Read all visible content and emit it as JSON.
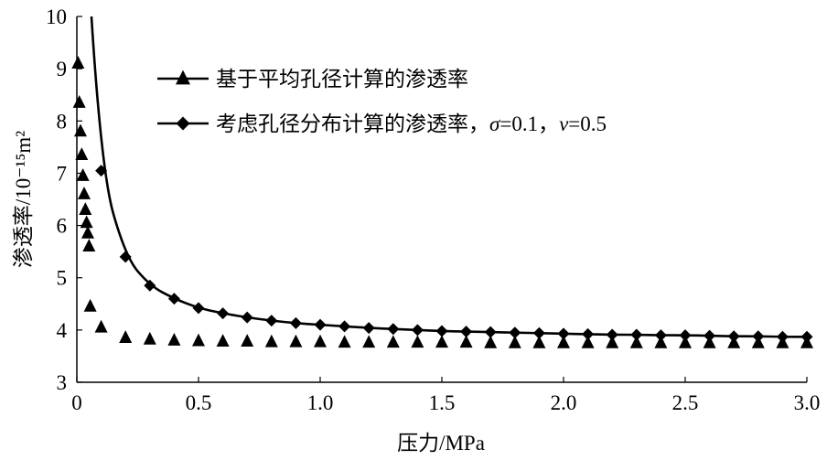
{
  "chart_data": {
    "type": "line",
    "xlabel": "压力/MPa",
    "ylabel": "渗透率/10⁻¹⁵m²",
    "xlim": [
      0,
      3.0
    ],
    "ylim": [
      3,
      10
    ],
    "x_ticks": [
      "0",
      "0.5",
      "1.0",
      "1.5",
      "2.0",
      "2.5",
      "3.0"
    ],
    "y_ticks": [
      "3",
      "4",
      "5",
      "6",
      "7",
      "8",
      "9",
      "10"
    ],
    "grid": false,
    "legend_position": "top-center",
    "series": [
      {
        "name": "基于平均孔径计算的渗透率",
        "marker": "triangle",
        "line": false,
        "color": "#000000",
        "x": [
          0.005,
          0.01,
          0.015,
          0.02,
          0.025,
          0.03,
          0.035,
          0.04,
          0.045,
          0.05,
          0.055,
          0.1,
          0.2,
          0.3,
          0.4,
          0.5,
          0.6,
          0.7,
          0.8,
          0.9,
          1.0,
          1.1,
          1.2,
          1.3,
          1.4,
          1.5,
          1.6,
          1.7,
          1.8,
          1.9,
          2.0,
          2.1,
          2.2,
          2.3,
          2.4,
          2.5,
          2.6,
          2.7,
          2.8,
          2.9,
          3.0
        ],
        "y": [
          9.1,
          8.35,
          7.8,
          7.35,
          6.95,
          6.6,
          6.3,
          6.05,
          5.85,
          5.6,
          4.45,
          4.05,
          3.85,
          3.82,
          3.8,
          3.79,
          3.78,
          3.78,
          3.77,
          3.77,
          3.77,
          3.76,
          3.76,
          3.76,
          3.76,
          3.76,
          3.76,
          3.75,
          3.75,
          3.75,
          3.75,
          3.75,
          3.75,
          3.75,
          3.75,
          3.75,
          3.75,
          3.75,
          3.75,
          3.75,
          3.75
        ]
      },
      {
        "name": "考虑孔径分布计算的渗透率，σ=0.1，ν=0.5",
        "legend_parts": [
          "考虑孔径分布计算的渗透率，",
          "σ",
          "=0.1，",
          "ν",
          "=0.5"
        ],
        "marker": "diamond",
        "line": true,
        "color": "#000000",
        "x": [
          0.1,
          0.2,
          0.3,
          0.4,
          0.5,
          0.6,
          0.7,
          0.8,
          0.9,
          1.0,
          1.1,
          1.2,
          1.3,
          1.4,
          1.5,
          1.6,
          1.7,
          1.8,
          1.9,
          2.0,
          2.1,
          2.2,
          2.3,
          2.4,
          2.5,
          2.6,
          2.7,
          2.8,
          2.9,
          3.0
        ],
        "y": [
          7.05,
          5.4,
          4.85,
          4.6,
          4.42,
          4.32,
          4.24,
          4.18,
          4.13,
          4.1,
          4.07,
          4.04,
          4.02,
          4.0,
          3.98,
          3.97,
          3.96,
          3.95,
          3.94,
          3.93,
          3.92,
          3.91,
          3.91,
          3.9,
          3.9,
          3.89,
          3.88,
          3.88,
          3.87,
          3.87
        ],
        "curve_start": [
          0.06,
          10.0
        ]
      }
    ]
  }
}
